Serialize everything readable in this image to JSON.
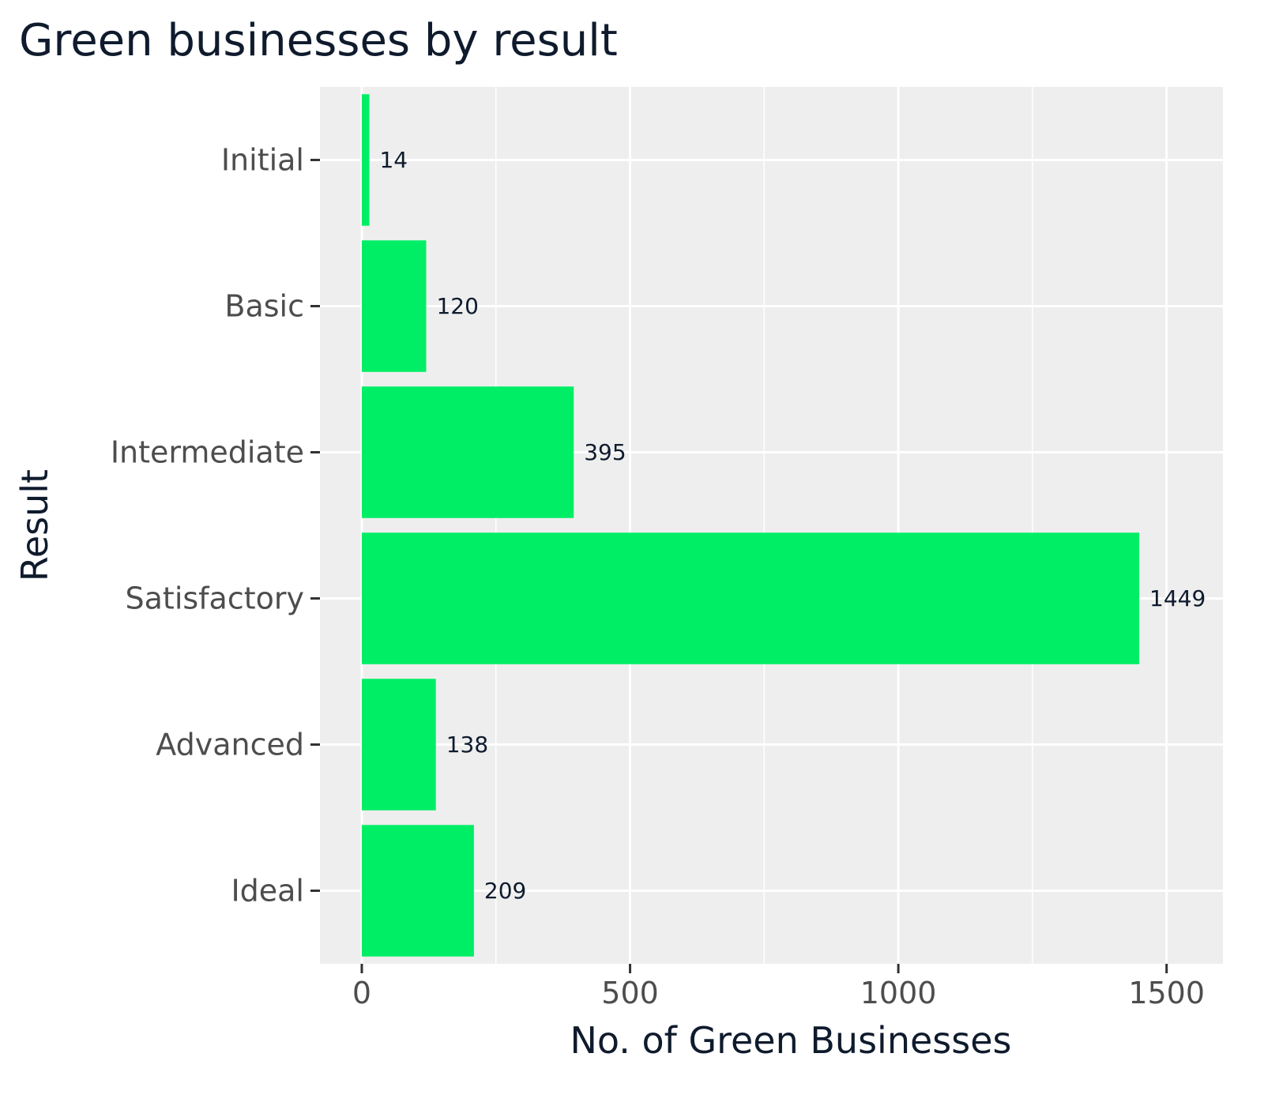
{
  "chart_data": {
    "type": "bar",
    "orientation": "horizontal",
    "title": "Green businesses by result",
    "xlabel": "No. of Green Businesses",
    "ylabel": "Result",
    "categories": [
      "Initial",
      "Basic",
      "Intermediate",
      "Satisfactory",
      "Advanced",
      "Ideal"
    ],
    "values": [
      14,
      120,
      395,
      1449,
      138,
      209
    ],
    "xlim": [
      -78,
      1605
    ],
    "xticks": [
      0,
      500,
      1000,
      1500
    ],
    "xtick_labels": [
      "0",
      "500",
      "1000",
      "1500"
    ],
    "grid": true,
    "bar_color": "#00ee66",
    "panel_color": "#eeeeee",
    "grid_color": "#ffffff"
  }
}
